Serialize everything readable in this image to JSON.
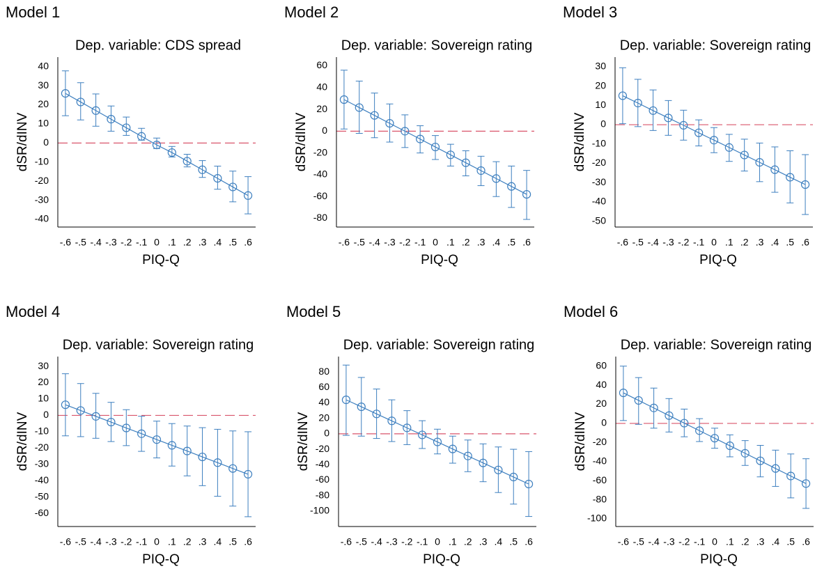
{
  "chart_data": [
    {
      "type": "line",
      "title": "Model 1",
      "subtitle": "Dep. variable: CDS spread",
      "x_label": "PIQ-Q",
      "y_label": "dSR/dINV",
      "categories": [
        "-.6",
        "-.5",
        "-.4",
        "-.3",
        "-.2",
        "-.1",
        "0",
        ".1",
        ".2",
        ".3",
        ".4",
        ".5",
        ".6"
      ],
      "values": [
        26,
        21.5,
        17,
        12.5,
        8,
        3.5,
        -1,
        -5,
        -9.5,
        -14,
        -18.5,
        -23,
        -27.5
      ],
      "lower": [
        14.3,
        12.1,
        8.8,
        6.2,
        4,
        1.5,
        -2.9,
        -7.3,
        -12.5,
        -18,
        -24.2,
        -30.8,
        -37.1
      ],
      "upper": [
        37.8,
        31.6,
        25.7,
        19.4,
        13.6,
        7.7,
        2.6,
        -1.8,
        -5.9,
        -9.2,
        -12.1,
        -14.7,
        -17.6
      ],
      "ylim": [
        -44,
        45
      ],
      "yticks": [
        40,
        30,
        20,
        10,
        0,
        -10,
        -20,
        -30,
        -40
      ],
      "color": "#3d7fbf",
      "reference_line": 0,
      "reference_color": "#d9556b"
    },
    {
      "type": "line",
      "title": "Model 2",
      "subtitle": "Dep. variable: Sovereign rating",
      "x_label": "PIQ-Q",
      "y_label": "dSR/dINV",
      "categories": [
        "-.6",
        "-.5",
        "-.4",
        "-.3",
        "-.2",
        "-.1",
        "0",
        ".1",
        ".2",
        ".3",
        ".4",
        ".5",
        ".6"
      ],
      "values": [
        29,
        21.7,
        14.5,
        7.2,
        0,
        -7.2,
        -14.5,
        -21.7,
        -29,
        -36.2,
        -43.5,
        -50.7,
        -58
      ],
      "lower": [
        2,
        -2,
        -6,
        -10,
        -15,
        -20,
        -26,
        -32,
        -41,
        -50,
        -60,
        -70,
        -81
      ],
      "upper": [
        56,
        46,
        35,
        25,
        15,
        5,
        -4,
        -12,
        -18,
        -23,
        -28,
        -32,
        -36
      ],
      "ylim": [
        -88,
        68
      ],
      "yticks": [
        60,
        40,
        20,
        0,
        -20,
        -40,
        -60,
        -80
      ],
      "color": "#3d7fbf",
      "reference_line": 0,
      "reference_color": "#d9556b"
    },
    {
      "type": "line",
      "title": "Model 3",
      "subtitle": "Dep. variable: Sovereign rating",
      "x_label": "PIQ-Q",
      "y_label": "dSR/dINV",
      "categories": [
        "-.6",
        "-.5",
        "-.4",
        "-.3",
        "-.2",
        "-.1",
        "0",
        ".1",
        ".2",
        ".3",
        ".4",
        ".5",
        ".6"
      ],
      "values": [
        15,
        11.2,
        7.3,
        3.5,
        -0.3,
        -4.2,
        -8,
        -11.8,
        -15.7,
        -19.5,
        -23.3,
        -27.2,
        -31
      ],
      "lower": [
        0.5,
        -1,
        -3,
        -5.5,
        -8,
        -11,
        -14.5,
        -19,
        -24,
        -29.5,
        -35,
        -40.5,
        -46.5
      ],
      "upper": [
        29.5,
        23.5,
        18,
        12.5,
        7.5,
        2.5,
        -1.5,
        -5,
        -7.5,
        -9.5,
        -11.5,
        -13.5,
        -15.5
      ],
      "ylim": [
        -53,
        35
      ],
      "yticks": [
        30,
        20,
        10,
        0,
        -10,
        -20,
        -30,
        -40,
        -50
      ],
      "color": "#3d7fbf",
      "reference_line": 0,
      "reference_color": "#d9556b"
    },
    {
      "type": "line",
      "title": "Model 4",
      "subtitle": "Dep. variable: Sovereign rating",
      "x_label": "PIQ-Q",
      "y_label": "dSR/dINV",
      "categories": [
        "-.6",
        "-.5",
        "-.4",
        "-.3",
        "-.2",
        "-.1",
        "0",
        ".1",
        ".2",
        ".3",
        ".4",
        ".5",
        ".6"
      ],
      "values": [
        6.5,
        3,
        -0.6,
        -4.1,
        -7.7,
        -11.2,
        -14.8,
        -18.3,
        -21.8,
        -25.4,
        -28.9,
        -32.5,
        -36
      ],
      "lower": [
        -12.5,
        -13,
        -14,
        -16,
        -18.5,
        -22,
        -26,
        -31,
        -37,
        -43,
        -49.5,
        -55.5,
        -62
      ],
      "upper": [
        25.5,
        19.5,
        13.5,
        8,
        3.5,
        -0.5,
        -3.5,
        -5,
        -6.5,
        -7.5,
        -8.5,
        -9.5,
        -10
      ],
      "ylim": [
        -68,
        36
      ],
      "yticks": [
        30,
        20,
        10,
        0,
        -10,
        -20,
        -30,
        -40,
        -50,
        -60
      ],
      "color": "#3d7fbf",
      "reference_line": 0,
      "reference_color": "#d9556b"
    },
    {
      "type": "line",
      "title": "Model 5",
      "subtitle": "Dep. variable: Sovereign rating",
      "x_label": "PIQ-Q",
      "y_label": "dSR/dINV",
      "categories": [
        "-.6",
        "-.5",
        "-.4",
        "-.3",
        "-.2",
        "-.1",
        "0",
        ".1",
        ".2",
        ".3",
        ".4",
        ".5",
        ".6"
      ],
      "values": [
        44,
        35,
        25.8,
        16.8,
        7.7,
        -1.4,
        -10.5,
        -19.6,
        -28.7,
        -37.7,
        -46.8,
        -55.9,
        -65
      ],
      "lower": [
        -2,
        -3,
        -6,
        -10,
        -14,
        -19,
        -26,
        -38,
        -49,
        -62,
        -76,
        -91,
        -107
      ],
      "upper": [
        89,
        73,
        58,
        44,
        30,
        17,
        6,
        -3,
        -8,
        -13,
        -17,
        -20,
        -23
      ],
      "ylim": [
        -120,
        100
      ],
      "yticks": [
        80,
        60,
        40,
        20,
        0,
        -20,
        -40,
        -60,
        -80,
        -100
      ],
      "color": "#3d7fbf",
      "reference_line": 0,
      "reference_color": "#d9556b"
    },
    {
      "type": "line",
      "title": "Model 6",
      "subtitle": "Dep. variable: Sovereign rating",
      "x_label": "PIQ-Q",
      "y_label": "dSR/dINV",
      "categories": [
        "-.6",
        "-.5",
        "-.4",
        "-.3",
        "-.2",
        "-.1",
        "0",
        ".1",
        ".2",
        ".3",
        ".4",
        ".5",
        ".6"
      ],
      "values": [
        32,
        24.1,
        16.2,
        8.2,
        0.3,
        -7.6,
        -15.5,
        -23.4,
        -31.3,
        -39.2,
        -47.2,
        -55.1,
        -63
      ],
      "lower": [
        3,
        -1,
        -5,
        -9,
        -14,
        -19,
        -26,
        -35,
        -44,
        -56,
        -66,
        -78,
        -89
      ],
      "upper": [
        60,
        48,
        37,
        26,
        15,
        5,
        -5,
        -12,
        -18,
        -23,
        -28,
        -32,
        -37
      ],
      "ylim": [
        -108,
        70
      ],
      "yticks": [
        60,
        40,
        20,
        0,
        -20,
        -40,
        -60,
        -80,
        -100
      ],
      "color": "#3d7fbf",
      "reference_line": 0,
      "reference_color": "#d9556b"
    }
  ]
}
